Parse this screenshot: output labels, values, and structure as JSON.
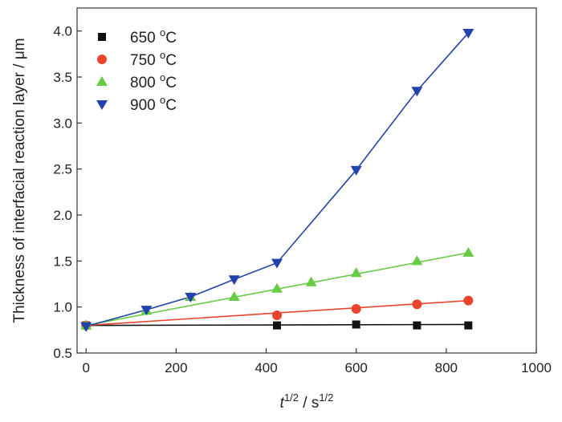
{
  "chart_data": {
    "type": "line",
    "xlabel": {
      "base": "t",
      "base_sup": "1/2",
      "sep": " / s",
      "unit_sup": "1/2"
    },
    "ylabel": "Thickness of interfacial reaction layer / μm",
    "xlim": [
      -20,
      1000
    ],
    "ylim": [
      0.5,
      4.25
    ],
    "xticks": [
      0,
      200,
      400,
      600,
      800,
      1000
    ],
    "xtick_labels": [
      "0",
      "200",
      "400",
      "600",
      "800",
      "1000"
    ],
    "yticks": [
      0.5,
      1.0,
      1.5,
      2.0,
      2.5,
      3.0,
      3.5,
      4.0
    ],
    "ytick_labels": [
      "0.5",
      "1.0",
      "1.5",
      "2.0",
      "2.5",
      "3.0",
      "3.5",
      "4.0"
    ],
    "grid": false,
    "legend": "top-left",
    "series": [
      {
        "name": "650 °C",
        "label_num": "650",
        "label_deg": "o",
        "label_unit": "C",
        "marker": "square",
        "color": "#111111",
        "points": [
          [
            0,
            0.8
          ],
          [
            424,
            0.8
          ],
          [
            600,
            0.81
          ],
          [
            735,
            0.8
          ],
          [
            849,
            0.8
          ]
        ],
        "fit": [
          [
            0,
            0.8
          ],
          [
            849,
            0.81
          ]
        ]
      },
      {
        "name": "750 °C",
        "label_num": "750",
        "label_deg": "o",
        "label_unit": "C",
        "marker": "circle",
        "color": "#e8452c",
        "points": [
          [
            0,
            0.8
          ],
          [
            424,
            0.91
          ],
          [
            600,
            0.98
          ],
          [
            735,
            1.03
          ],
          [
            849,
            1.07
          ]
        ],
        "fit": [
          [
            0,
            0.8
          ],
          [
            849,
            1.07
          ]
        ]
      },
      {
        "name": "800 °C",
        "label_num": "800",
        "label_deg": "o",
        "label_unit": "C",
        "marker": "triangle-up",
        "color": "#66cc44",
        "points": [
          [
            0,
            0.8
          ],
          [
            134,
            0.96
          ],
          [
            232,
            1.11
          ],
          [
            329,
            1.11
          ],
          [
            424,
            1.2
          ],
          [
            500,
            1.27
          ],
          [
            600,
            1.37
          ],
          [
            735,
            1.5
          ],
          [
            849,
            1.59
          ]
        ],
        "fit": [
          [
            0,
            0.8
          ],
          [
            849,
            1.59
          ]
        ]
      },
      {
        "name": "900 °C",
        "label_num": "900",
        "label_deg": "o",
        "label_unit": "C",
        "marker": "triangle-down",
        "color": "#2244aa",
        "points": [
          [
            0,
            0.79
          ],
          [
            134,
            0.97
          ],
          [
            232,
            1.11
          ],
          [
            329,
            1.3
          ],
          [
            424,
            1.48
          ],
          [
            600,
            2.49
          ],
          [
            735,
            3.35
          ],
          [
            849,
            3.98
          ]
        ],
        "fit": [
          [
            0,
            0.79
          ],
          [
            134,
            0.97
          ],
          [
            232,
            1.11
          ],
          [
            329,
            1.3
          ],
          [
            424,
            1.48
          ],
          [
            600,
            2.49
          ],
          [
            735,
            3.35
          ],
          [
            849,
            3.98
          ]
        ]
      }
    ]
  }
}
